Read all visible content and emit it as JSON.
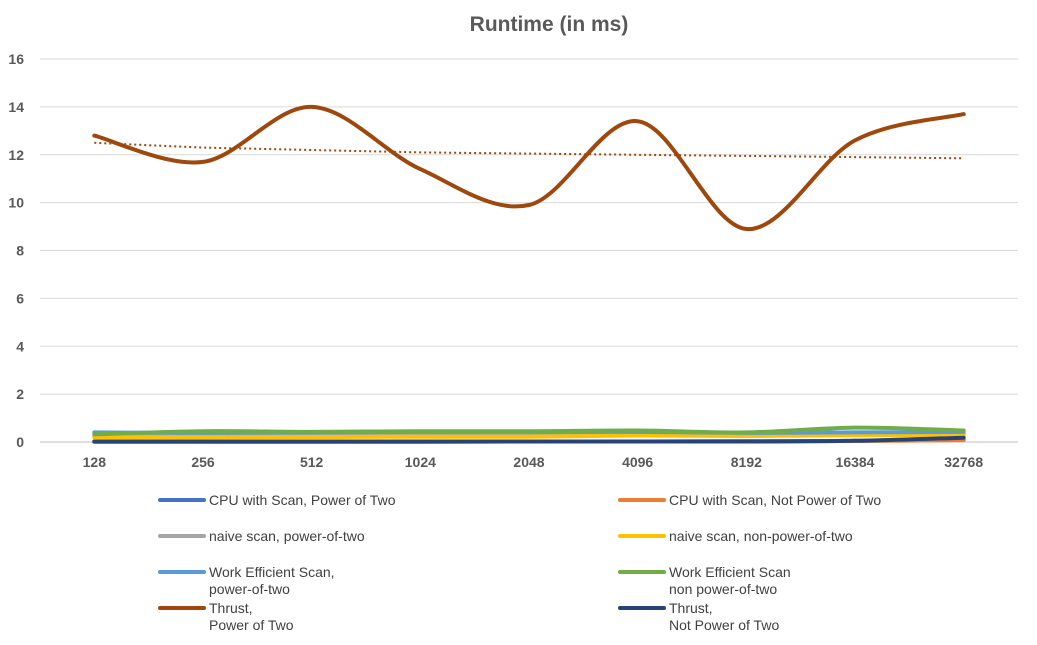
{
  "chart_data": {
    "type": "line",
    "title": "Runtime (in ms)",
    "xlabel": "",
    "ylabel": "",
    "categories": [
      "128",
      "256",
      "512",
      "1024",
      "2048",
      "4096",
      "8192",
      "16384",
      "32768"
    ],
    "ylim": [
      0,
      16
    ],
    "yticks": [
      0,
      2,
      4,
      6,
      8,
      10,
      12,
      14,
      16
    ],
    "grid": true,
    "legend_position": "bottom",
    "series": [
      {
        "name": "CPU with Scan, Power of Two",
        "color": "#4472C4",
        "values": [
          0.01,
          0.01,
          0.01,
          0.01,
          0.02,
          0.02,
          0.03,
          0.05,
          0.1
        ]
      },
      {
        "name": "CPU with Scan, Not Power of Two",
        "color": "#ED7D31",
        "values": [
          0.01,
          0.01,
          0.01,
          0.01,
          0.02,
          0.02,
          0.03,
          0.04,
          0.08
        ]
      },
      {
        "name": "naive scan, power-of-two",
        "color": "#A5A5A5",
        "values": [
          0.25,
          0.26,
          0.27,
          0.28,
          0.28,
          0.3,
          0.3,
          0.32,
          0.35
        ]
      },
      {
        "name": "naive scan, non-power-of-two",
        "color": "#FFC000",
        "values": [
          0.2,
          0.2,
          0.21,
          0.22,
          0.22,
          0.27,
          0.25,
          0.28,
          0.3
        ]
      },
      {
        "name": "Work Efficient Scan,\npower-of-two",
        "color": "#5B9BD5",
        "values": [
          0.4,
          0.38,
          0.4,
          0.42,
          0.42,
          0.42,
          0.38,
          0.4,
          0.42
        ]
      },
      {
        "name": "Work Efficient Scan\nnon power-of-two",
        "color": "#70AD47",
        "values": [
          0.32,
          0.45,
          0.42,
          0.45,
          0.45,
          0.48,
          0.4,
          0.6,
          0.48
        ]
      },
      {
        "name": "Thrust,\nPower of Two",
        "color": "#9E480E",
        "values": [
          12.8,
          11.7,
          14.0,
          11.4,
          9.9,
          13.4,
          8.9,
          12.6,
          13.7
        ]
      },
      {
        "name": "Thrust,\nNot Power of Two",
        "color": "#264478",
        "values": [
          0.02,
          0.02,
          0.02,
          0.02,
          0.02,
          0.02,
          0.02,
          0.05,
          0.18
        ]
      }
    ],
    "trendlines": [
      {
        "color": "#9E480E",
        "values": [
          12.5,
          12.3,
          12.2,
          12.1,
          12.05,
          12.0,
          11.95,
          11.9,
          11.85
        ]
      },
      {
        "color": "#5B9BD5",
        "values": [
          0.38,
          0.39,
          0.39,
          0.4,
          0.4,
          0.41,
          0.41,
          0.42,
          0.42
        ]
      },
      {
        "color": "#A5A5A5",
        "values": [
          0.25,
          0.26,
          0.27,
          0.27,
          0.28,
          0.29,
          0.3,
          0.31,
          0.32
        ]
      }
    ]
  }
}
